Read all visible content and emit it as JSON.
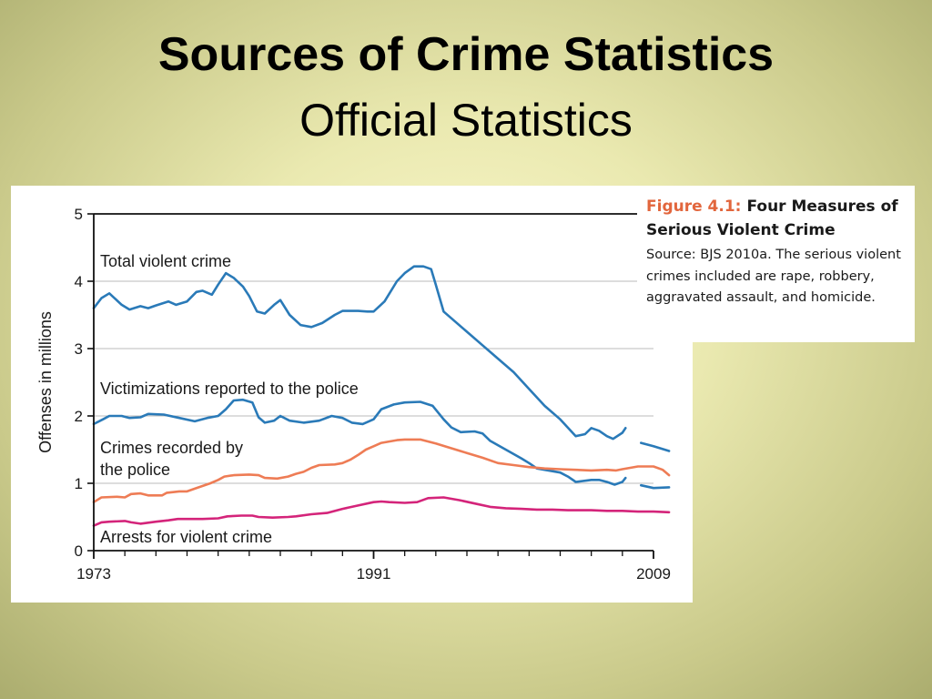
{
  "slide": {
    "title": "Sources of Crime Statistics",
    "subtitle": "Official Statistics"
  },
  "caption": {
    "figure_number": "Figure 4.1:",
    "figure_title": "Four Measures of Serious Violent Crime",
    "source_text": "Source: BJS 2010a. The serious violent crimes included are rape, robbery, aggravated assault, and homicide."
  },
  "colors": {
    "blue": "#2a7ab8",
    "orange": "#ee7c55",
    "magenta": "#d4247a",
    "gridline": "#bbbbbb",
    "axis": "#111111"
  },
  "chart_data": {
    "type": "line",
    "ylabel": "Offenses in millions",
    "xlabel": "",
    "x_range": [
      1973,
      2009
    ],
    "ylim": [
      0,
      5
    ],
    "yticks": [
      0,
      1,
      2,
      3,
      4,
      5
    ],
    "xtick_labels": [
      1973,
      1991,
      2009
    ],
    "grid": true,
    "series": [
      {
        "name": "Total violent crime",
        "color": "blue",
        "points": [
          [
            1973,
            3.6
          ],
          [
            1973.5,
            3.75
          ],
          [
            1974,
            3.82
          ],
          [
            1974.8,
            3.65
          ],
          [
            1975.3,
            3.58
          ],
          [
            1976,
            3.63
          ],
          [
            1976.5,
            3.6
          ],
          [
            1977,
            3.64
          ],
          [
            1977.8,
            3.7
          ],
          [
            1978.3,
            3.65
          ],
          [
            1979,
            3.7
          ],
          [
            1979.6,
            3.84
          ],
          [
            1980,
            3.86
          ],
          [
            1980.6,
            3.8
          ],
          [
            1981,
            3.95
          ],
          [
            1981.5,
            4.12
          ],
          [
            1982,
            4.05
          ],
          [
            1982.6,
            3.92
          ],
          [
            1983,
            3.78
          ],
          [
            1983.5,
            3.55
          ],
          [
            1984,
            3.52
          ],
          [
            1984.6,
            3.65
          ],
          [
            1985,
            3.72
          ],
          [
            1985.6,
            3.5
          ],
          [
            1986.3,
            3.35
          ],
          [
            1987,
            3.32
          ],
          [
            1987.7,
            3.38
          ],
          [
            1988.5,
            3.5
          ],
          [
            1989,
            3.56
          ],
          [
            1990,
            3.56
          ],
          [
            1990.6,
            3.55
          ],
          [
            1991,
            3.55
          ],
          [
            1991.7,
            3.7
          ],
          [
            1992.5,
            4.0
          ],
          [
            1993,
            4.12
          ],
          [
            1993.6,
            4.22
          ],
          [
            1994.2,
            4.22
          ],
          [
            1994.7,
            4.18
          ],
          [
            1995,
            3.95
          ],
          [
            1995.5,
            3.55
          ],
          [
            1996,
            3.45
          ],
          [
            1997,
            3.25
          ],
          [
            1998,
            3.05
          ],
          [
            1999,
            2.85
          ],
          [
            2000,
            2.65
          ],
          [
            2001,
            2.4
          ],
          [
            2002,
            2.15
          ],
          [
            2003,
            1.95
          ],
          [
            2004,
            1.7
          ],
          [
            2004.6,
            1.73
          ],
          [
            2005,
            1.82
          ],
          [
            2005.5,
            1.78
          ],
          [
            2006,
            1.7
          ],
          [
            2006.4,
            1.66
          ],
          [
            2007,
            1.75
          ],
          [
            2007.2,
            1.82
          ]
        ]
      },
      {
        "name": "Total violent crime (continued)",
        "color": "blue",
        "points": [
          [
            2008.2,
            1.6
          ],
          [
            2009,
            1.55
          ],
          [
            2010,
            1.48
          ]
        ]
      },
      {
        "name": "Victimizations reported to the police",
        "color": "blue",
        "points": [
          [
            1973,
            1.88
          ],
          [
            1973.6,
            1.95
          ],
          [
            1974,
            2.0
          ],
          [
            1974.8,
            2.0
          ],
          [
            1975.3,
            1.97
          ],
          [
            1976,
            1.98
          ],
          [
            1976.5,
            2.03
          ],
          [
            1977.5,
            2.02
          ],
          [
            1978.5,
            1.97
          ],
          [
            1979.5,
            1.92
          ],
          [
            1980.3,
            1.97
          ],
          [
            1981,
            2.0
          ],
          [
            1981.5,
            2.1
          ],
          [
            1982,
            2.23
          ],
          [
            1982.6,
            2.24
          ],
          [
            1983.2,
            2.2
          ],
          [
            1983.6,
            1.98
          ],
          [
            1984,
            1.9
          ],
          [
            1984.6,
            1.93
          ],
          [
            1985,
            2.0
          ],
          [
            1985.6,
            1.93
          ],
          [
            1986.5,
            1.9
          ],
          [
            1987.5,
            1.93
          ],
          [
            1988.3,
            2.0
          ],
          [
            1989,
            1.97
          ],
          [
            1989.6,
            1.9
          ],
          [
            1990.3,
            1.88
          ],
          [
            1991,
            1.95
          ],
          [
            1991.5,
            2.1
          ],
          [
            1992.3,
            2.17
          ],
          [
            1993,
            2.2
          ],
          [
            1994,
            2.21
          ],
          [
            1994.8,
            2.15
          ],
          [
            1995.5,
            1.95
          ],
          [
            1996,
            1.83
          ],
          [
            1996.6,
            1.76
          ],
          [
            1997.5,
            1.77
          ],
          [
            1998,
            1.74
          ],
          [
            1998.5,
            1.63
          ],
          [
            1999.5,
            1.5
          ],
          [
            2000.5,
            1.37
          ],
          [
            2001,
            1.3
          ],
          [
            2001.5,
            1.22
          ],
          [
            2002.5,
            1.18
          ],
          [
            2003,
            1.16
          ],
          [
            2003.5,
            1.1
          ],
          [
            2004,
            1.02
          ],
          [
            2005,
            1.05
          ],
          [
            2005.5,
            1.05
          ],
          [
            2006,
            1.02
          ],
          [
            2006.5,
            0.98
          ],
          [
            2007,
            1.02
          ],
          [
            2007.2,
            1.08
          ]
        ]
      },
      {
        "name": "Victimizations reported to the police (continued)",
        "color": "blue",
        "points": [
          [
            2008.2,
            0.97
          ],
          [
            2009,
            0.93
          ],
          [
            2010,
            0.94
          ]
        ]
      },
      {
        "name": "Crimes recorded by the police",
        "color": "orange",
        "points": [
          [
            1973,
            0.72
          ],
          [
            1973.5,
            0.79
          ],
          [
            1974.5,
            0.8
          ],
          [
            1975,
            0.79
          ],
          [
            1975.4,
            0.84
          ],
          [
            1976,
            0.85
          ],
          [
            1976.5,
            0.82
          ],
          [
            1977.4,
            0.82
          ],
          [
            1977.7,
            0.86
          ],
          [
            1978.5,
            0.88
          ],
          [
            1979,
            0.88
          ],
          [
            1979.5,
            0.92
          ],
          [
            1980.5,
            1.0
          ],
          [
            1981,
            1.05
          ],
          [
            1981.4,
            1.1
          ],
          [
            1982,
            1.12
          ],
          [
            1983,
            1.13
          ],
          [
            1983.6,
            1.12
          ],
          [
            1984,
            1.08
          ],
          [
            1984.8,
            1.07
          ],
          [
            1985.5,
            1.1
          ],
          [
            1986,
            1.14
          ],
          [
            1986.5,
            1.17
          ],
          [
            1987,
            1.23
          ],
          [
            1987.5,
            1.27
          ],
          [
            1988.5,
            1.28
          ],
          [
            1989,
            1.3
          ],
          [
            1989.5,
            1.35
          ],
          [
            1990,
            1.42
          ],
          [
            1990.5,
            1.5
          ],
          [
            1991,
            1.55
          ],
          [
            1991.5,
            1.6
          ],
          [
            1992.5,
            1.64
          ],
          [
            1993,
            1.65
          ],
          [
            1994,
            1.65
          ],
          [
            1995,
            1.59
          ],
          [
            1996,
            1.52
          ],
          [
            1997,
            1.45
          ],
          [
            1998,
            1.38
          ],
          [
            1999,
            1.3
          ],
          [
            2000,
            1.27
          ],
          [
            2001,
            1.24
          ],
          [
            2002,
            1.22
          ],
          [
            2003,
            1.21
          ],
          [
            2004,
            1.2
          ],
          [
            2005,
            1.19
          ],
          [
            2006,
            1.2
          ],
          [
            2006.6,
            1.19
          ],
          [
            2007,
            1.21
          ],
          [
            2008,
            1.25
          ],
          [
            2009,
            1.25
          ],
          [
            2009.6,
            1.2
          ],
          [
            2010,
            1.12
          ]
        ]
      },
      {
        "name": "Arrests for violent crime",
        "color": "magenta",
        "points": [
          [
            1973,
            0.37
          ],
          [
            1973.5,
            0.42
          ],
          [
            1974,
            0.43
          ],
          [
            1975,
            0.44
          ],
          [
            1975.4,
            0.42
          ],
          [
            1976,
            0.4
          ],
          [
            1977,
            0.43
          ],
          [
            1977.8,
            0.45
          ],
          [
            1978.4,
            0.47
          ],
          [
            1979,
            0.47
          ],
          [
            1980,
            0.47
          ],
          [
            1981,
            0.48
          ],
          [
            1981.6,
            0.51
          ],
          [
            1982.5,
            0.52
          ],
          [
            1983.2,
            0.52
          ],
          [
            1983.6,
            0.5
          ],
          [
            1984.5,
            0.49
          ],
          [
            1985.5,
            0.5
          ],
          [
            1986,
            0.51
          ],
          [
            1987,
            0.54
          ],
          [
            1988,
            0.56
          ],
          [
            1989,
            0.62
          ],
          [
            1990,
            0.67
          ],
          [
            1991,
            0.72
          ],
          [
            1991.5,
            0.73
          ],
          [
            1992,
            0.72
          ],
          [
            1993,
            0.71
          ],
          [
            1993.8,
            0.72
          ],
          [
            1994.5,
            0.78
          ],
          [
            1995.5,
            0.79
          ],
          [
            1996.5,
            0.75
          ],
          [
            1997.5,
            0.7
          ],
          [
            1998.5,
            0.65
          ],
          [
            1999.5,
            0.63
          ],
          [
            2000.5,
            0.62
          ],
          [
            2001.5,
            0.61
          ],
          [
            2002.5,
            0.61
          ],
          [
            2003.5,
            0.6
          ],
          [
            2005,
            0.6
          ],
          [
            2006,
            0.59
          ],
          [
            2007,
            0.59
          ],
          [
            2008,
            0.58
          ],
          [
            2009,
            0.58
          ],
          [
            2010,
            0.57
          ]
        ]
      }
    ],
    "annotations": [
      {
        "id": "total",
        "lines": [
          "Total violent crime"
        ]
      },
      {
        "id": "victimizations",
        "lines": [
          "Victimizations reported to the police"
        ]
      },
      {
        "id": "recorded",
        "lines": [
          "Crimes recorded by",
          "the police"
        ]
      },
      {
        "id": "arrests",
        "lines": [
          "Arrests for violent crime"
        ]
      }
    ]
  }
}
